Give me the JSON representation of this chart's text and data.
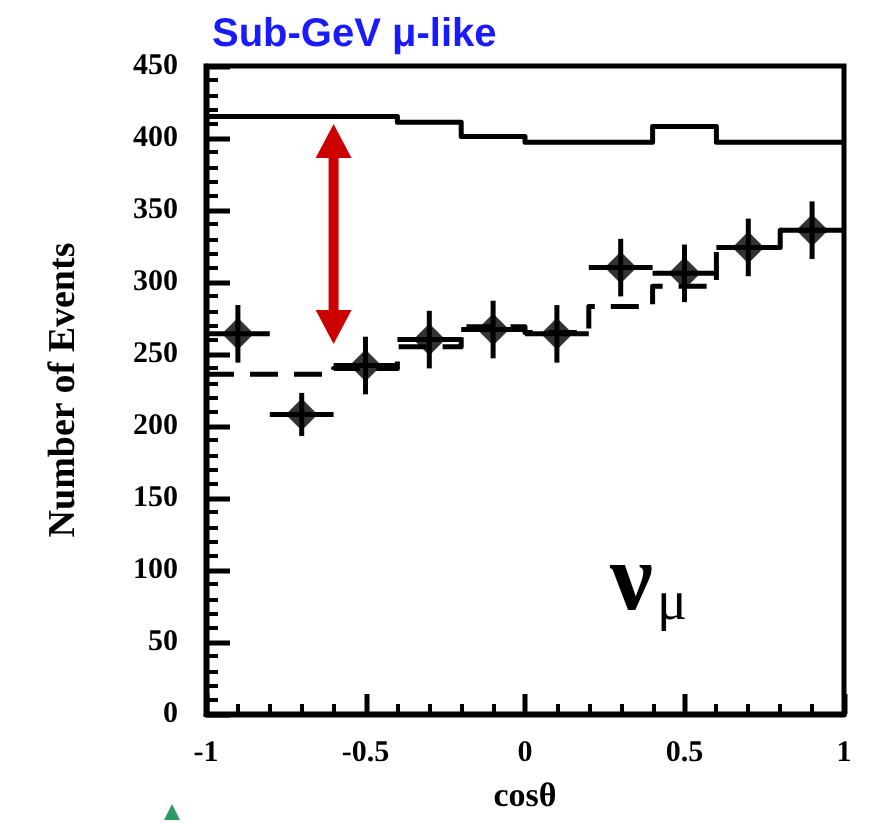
{
  "chart_data": {
    "type": "step",
    "title": "Sub-GeV μ-like",
    "xlabel": "cosθ",
    "ylabel": "Number of Events",
    "xlim": [
      -1,
      1
    ],
    "xticks": [
      -1,
      -0.5,
      0,
      0.5,
      1
    ],
    "ylim": [
      0,
      450
    ],
    "yticks": [
      0,
      50,
      100,
      150,
      200,
      250,
      300,
      350,
      400,
      450
    ],
    "series": [
      {
        "color": "#000000",
        "line_style": "solid",
        "x": [
          -1,
          -0.8,
          -0.6,
          -0.4,
          -0.2,
          0,
          0.2,
          0.4,
          0.6,
          0.8,
          1
        ],
        "values": [
          415,
          415,
          415,
          411,
          401,
          397,
          397,
          408,
          397,
          397,
          397
        ]
      },
      {
        "color": "#000000",
        "line_style": "dashed",
        "x": [
          -1,
          -0.8,
          -0.6,
          -0.4,
          -0.2,
          0,
          0.2,
          0.4,
          0.6,
          0.8,
          1
        ],
        "values": [
          236,
          236,
          240,
          255,
          269,
          265,
          283,
          297,
          324,
          336,
          336
        ]
      },
      {
        "type": "scatter",
        "color": "#000000",
        "marker": "diamond",
        "x": [
          -0.9,
          -0.7,
          -0.5,
          -0.3,
          -0.1,
          0.1,
          0.3,
          0.5,
          0.7,
          0.9
        ],
        "values": [
          264,
          208,
          242,
          260,
          267,
          264,
          310,
          306,
          324,
          336
        ],
        "errors": [
          20,
          15,
          20,
          20,
          20,
          20,
          20,
          20,
          20,
          20
        ],
        "xerrors": [
          0.1,
          0.1,
          0.1,
          0.1,
          0.1,
          0.1,
          0.1,
          0.1,
          0.1,
          0.1
        ]
      }
    ],
    "annotations": [
      "ν$_{μ}$"
    ],
    "grid": false
  }
}
